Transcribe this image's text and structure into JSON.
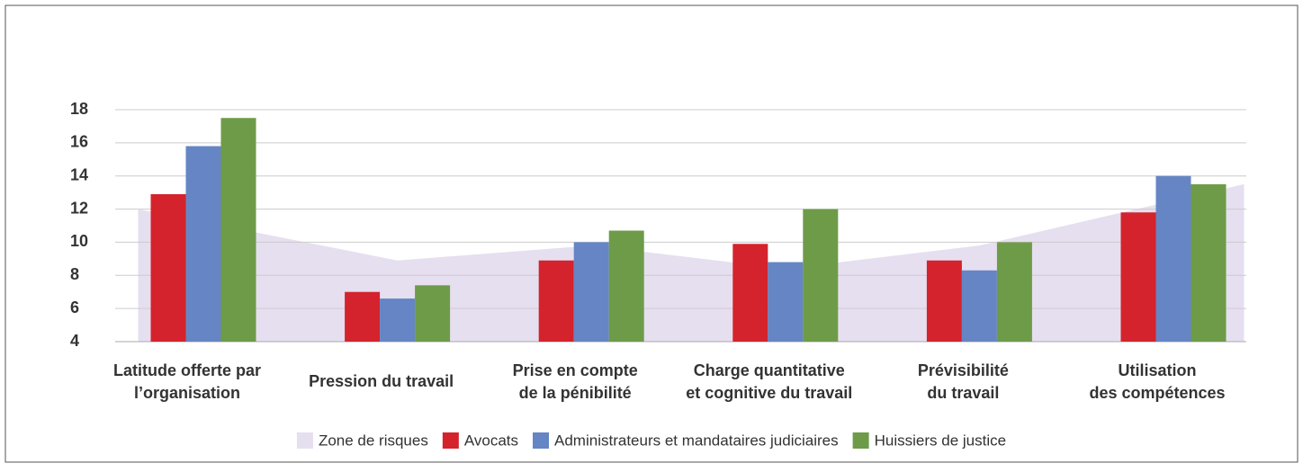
{
  "chart_data": {
    "type": "bar",
    "categories": [
      [
        "Latitude offerte par",
        "l’organisation"
      ],
      [
        "Pression du travail"
      ],
      [
        "Prise en compte",
        "de la pénibilité"
      ],
      [
        "Charge quantitative",
        "et cognitive du travail"
      ],
      [
        "Prévisibilité",
        "du travail"
      ],
      [
        "Utilisation",
        "des compétences"
      ]
    ],
    "area": {
      "name": "Zone de risques",
      "color": "#e6dff0",
      "values": [
        12,
        8.9,
        9.8,
        8.4,
        9.8,
        13.5
      ]
    },
    "series": [
      {
        "name": "Avocats",
        "color": "#d4232c",
        "values": [
          12.9,
          7.0,
          8.9,
          9.9,
          8.9,
          11.8
        ]
      },
      {
        "name": "Administrateurs et mandataires judiciaires",
        "color": "#6585c5",
        "values": [
          15.8,
          6.6,
          10.0,
          8.8,
          8.3,
          14.0
        ]
      },
      {
        "name": "Huissiers de justice",
        "color": "#6e9b48",
        "values": [
          17.5,
          7.4,
          10.7,
          12.0,
          10.0,
          13.5
        ]
      }
    ],
    "ylim": [
      4,
      18
    ],
    "yticks": [
      4,
      6,
      8,
      10,
      12,
      14,
      16,
      18
    ],
    "grid": true
  }
}
